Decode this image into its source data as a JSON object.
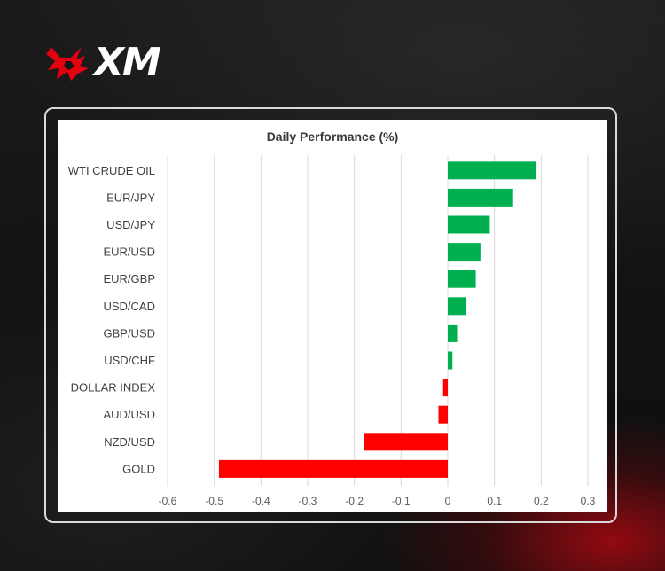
{
  "brand": {
    "logo_text": "XM",
    "logo_icon": "bull-icon",
    "accent_color": "#e3000f"
  },
  "chart_data": {
    "type": "bar",
    "orientation": "horizontal",
    "title": "Daily Performance (%)",
    "categories": [
      "WTI CRUDE OIL",
      "EUR/JPY",
      "USD/JPY",
      "EUR/USD",
      "EUR/GBP",
      "USD/CAD",
      "GBP/USD",
      "USD/CHF",
      "DOLLAR INDEX",
      "AUD/USD",
      "NZD/USD",
      "GOLD"
    ],
    "values": [
      0.19,
      0.14,
      0.09,
      0.07,
      0.06,
      0.04,
      0.02,
      0.01,
      -0.01,
      -0.02,
      -0.18,
      -0.49
    ],
    "xlim": [
      -0.6,
      0.3
    ],
    "xticks": [
      "-0.6",
      "-0.5",
      "-0.4",
      "-0.3",
      "-0.2",
      "-0.1",
      "0",
      "0.1",
      "0.2",
      "0.3"
    ],
    "grid": "vertical",
    "positive_color": "#00b050",
    "negative_color": "#ff0000"
  }
}
